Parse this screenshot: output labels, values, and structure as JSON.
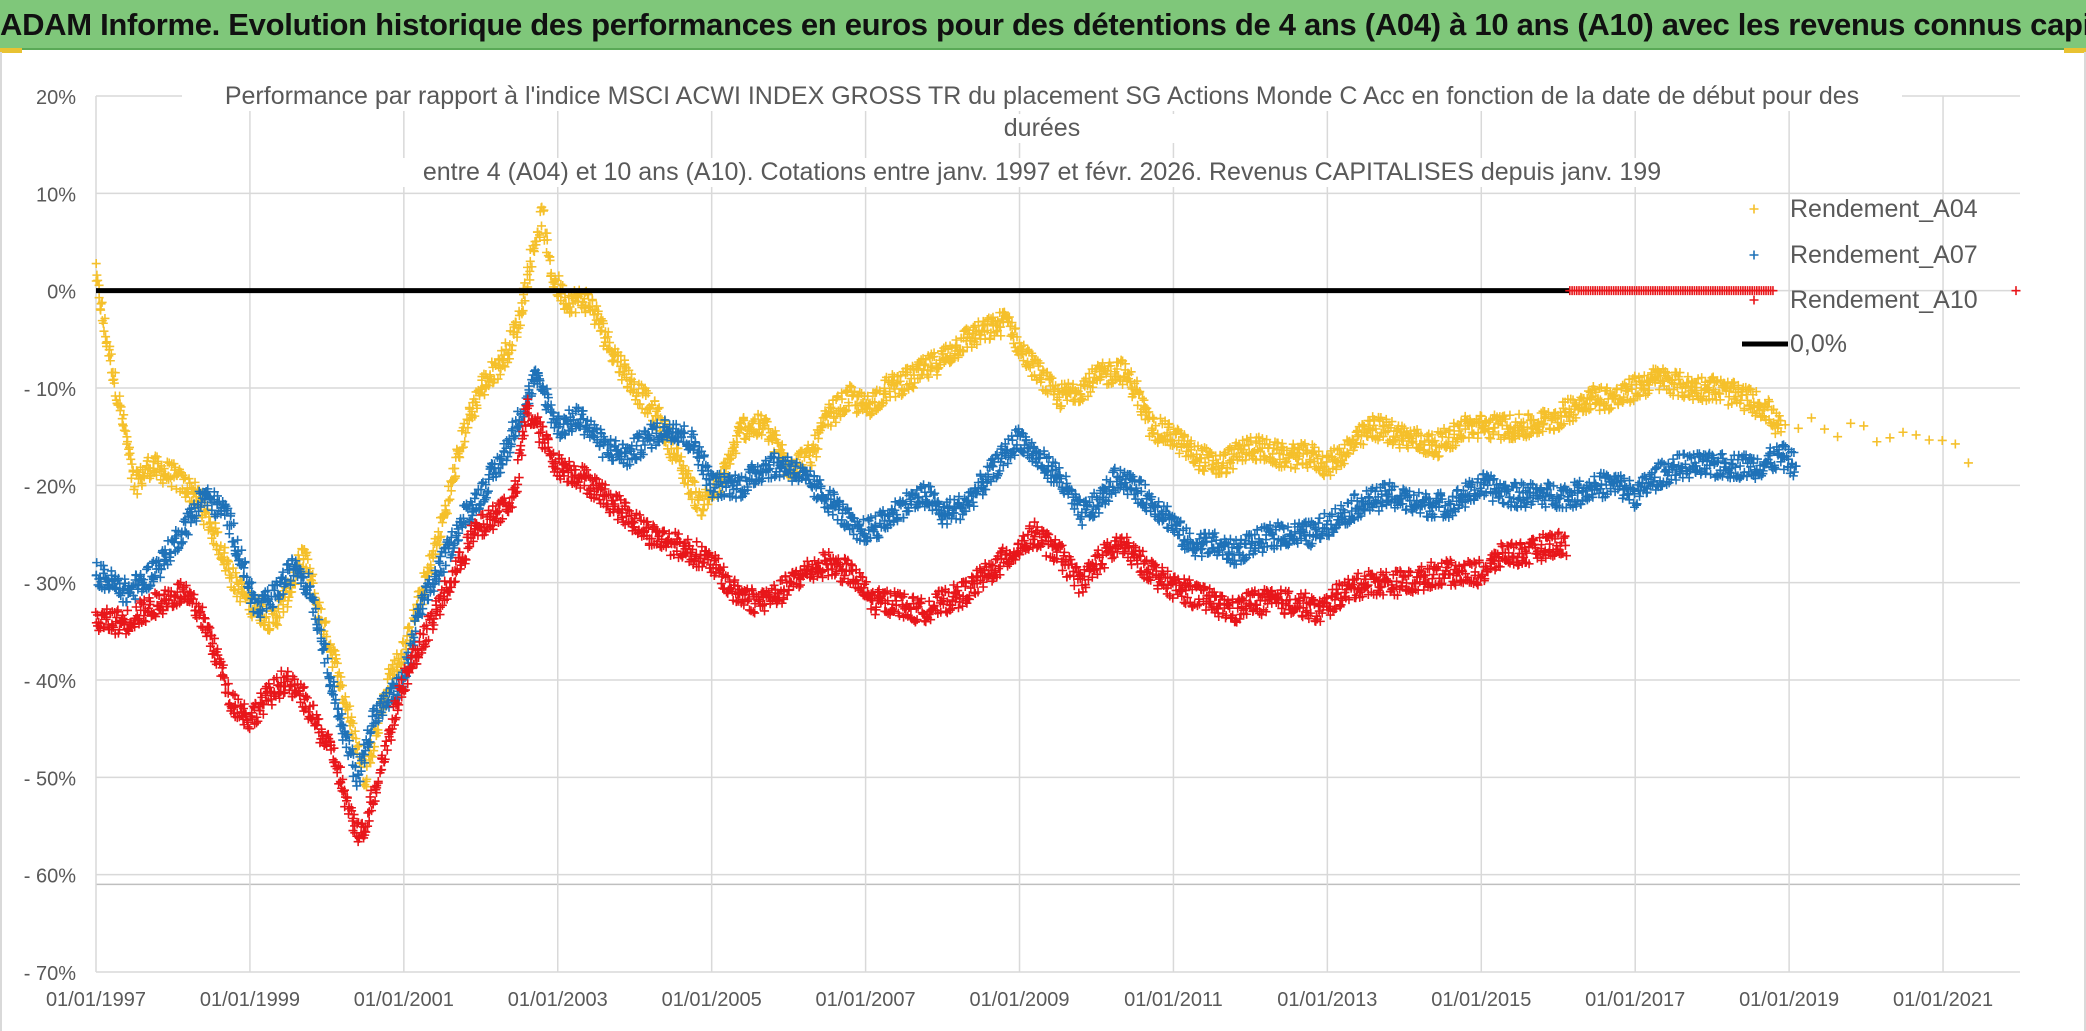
{
  "banner": {
    "title": "ADAM Informe. Evolution historique des performances en euros pour des détentions de 4 ans (A04) à 10 ans (A10) avec les revenus connus capitalisés",
    "background": "#7fc77a"
  },
  "chart_data": {
    "type": "scatter",
    "title_lines": [
      "Performance par rapport à l'indice MSCI ACWI INDEX GROSS TR  du placement SG Actions Monde C Acc en fonction de la date de début pour des",
      "durées",
      "entre 4 (A04) et 10 ans (A10). Cotations entre janv. 1997 et févr. 2026. Revenus CAPITALISES depuis janv. 199"
    ],
    "ylim": [
      -70,
      20
    ],
    "y_ticks": [
      20,
      10,
      0,
      -10,
      -20,
      -30,
      -40,
      -50,
      -60,
      -70
    ],
    "y_tick_labels": [
      "20%",
      "10%",
      "0%",
      "- 10%",
      "- 20%",
      "- 30%",
      "- 40%",
      "- 50%",
      "- 60%",
      "- 70%"
    ],
    "xlim": [
      1997.0,
      2022.0
    ],
    "x_ticks": [
      1997,
      1999,
      2001,
      2003,
      2005,
      2007,
      2009,
      2011,
      2013,
      2015,
      2017,
      2019,
      2021
    ],
    "x_tick_labels": [
      "01/01/1997",
      "01/01/1999",
      "01/01/2001",
      "01/01/2003",
      "01/01/2005",
      "01/01/2007",
      "01/01/2009",
      "01/01/2011",
      "01/01/2013",
      "01/01/2015",
      "01/01/2017",
      "01/01/2019",
      "01/01/2021"
    ],
    "grid": true,
    "legend_position": "right",
    "reference_line": {
      "name": "0,0%",
      "value": 0,
      "x_range": [
        1997.0,
        2016.15
      ],
      "color": "#000000"
    },
    "series": [
      {
        "name": "Rendement_A04",
        "color": "#f5c02b",
        "x": [
          1997.0,
          1997.1,
          1997.2,
          1997.35,
          1997.5,
          1997.7,
          1998.0,
          1998.3,
          1998.6,
          1998.8,
          1999.0,
          1999.3,
          1999.5,
          1999.7,
          1999.9,
          2000.1,
          2000.3,
          2000.5,
          2000.8,
          2001.0,
          2001.2,
          2001.5,
          2001.8,
          2002.0,
          2002.3,
          2002.5,
          2002.65,
          2002.8,
          2002.9,
          2003.1,
          2003.4,
          2003.7,
          2004.0,
          2004.3,
          2004.6,
          2004.85,
          2005.1,
          2005.4,
          2005.7,
          2006.0,
          2006.3,
          2006.5,
          2006.8,
          2007.0,
          2007.3,
          2007.6,
          2008.0,
          2008.3,
          2008.6,
          2008.85,
          2009.0,
          2009.2,
          2009.5,
          2009.8,
          2010.0,
          2010.3,
          2010.5,
          2010.7,
          2011.0,
          2011.3,
          2011.6,
          2012.0,
          2012.4,
          2012.8,
          2013.0,
          2013.3,
          2013.6,
          2014.0,
          2014.4,
          2014.8,
          2015.2,
          2015.6,
          2016.0,
          2016.4,
          2016.8,
          2017.0,
          2017.3,
          2017.7,
          2018.0,
          2018.4,
          2018.7,
          2018.85,
          2019.5,
          2020.2,
          2020.9,
          2021.5
        ],
        "y": [
          1.5,
          -3.5,
          -7.5,
          -13.5,
          -20,
          -18,
          -19,
          -21,
          -26,
          -30,
          -32,
          -34,
          -31,
          -27,
          -33,
          -38,
          -44,
          -50,
          -40,
          -37,
          -32,
          -24,
          -14,
          -10,
          -7,
          -3,
          3,
          8,
          2,
          -1,
          -1,
          -6,
          -10,
          -13,
          -18,
          -22,
          -20,
          -14,
          -14,
          -18,
          -17,
          -13,
          -11,
          -12,
          -10,
          -9,
          -7,
          -5,
          -4,
          -3,
          -6,
          -8,
          -11,
          -10,
          -9,
          -8,
          -10,
          -14,
          -15,
          -17,
          -18,
          -16,
          -17,
          -17,
          -18,
          -16,
          -14,
          -15,
          -16,
          -14,
          -14,
          -14,
          -13,
          -11,
          -11,
          -10,
          -9,
          -10,
          -10,
          -11,
          -12,
          -14,
          -14,
          -15,
          -16,
          -17
        ]
      },
      {
        "name": "Rendement_A07",
        "color": "#1f72b8",
        "x": [
          1997.0,
          1997.2,
          1997.4,
          1997.6,
          1997.85,
          1998.1,
          1998.4,
          1998.7,
          1998.9,
          1999.1,
          1999.35,
          1999.6,
          1999.8,
          2000.0,
          2000.2,
          2000.4,
          2000.6,
          2000.8,
          2001.0,
          2001.2,
          2001.5,
          2001.8,
          2002.0,
          2002.3,
          2002.55,
          2002.7,
          2002.85,
          2003.0,
          2003.3,
          2003.6,
          2003.9,
          2004.2,
          2004.5,
          2004.8,
          2005.0,
          2005.4,
          2005.7,
          2006.0,
          2006.3,
          2006.6,
          2006.9,
          2007.2,
          2007.5,
          2007.8,
          2008.0,
          2008.3,
          2008.6,
          2008.8,
          2009.0,
          2009.2,
          2009.5,
          2009.8,
          2010.0,
          2010.3,
          2010.6,
          2010.9,
          2011.2,
          2011.5,
          2011.8,
          2012.0,
          2012.4,
          2012.8,
          2013.0,
          2013.4,
          2013.8,
          2014.2,
          2014.6,
          2015.0,
          2015.4,
          2015.8,
          2016.2,
          2016.5,
          2016.8,
          2017.0,
          2017.3,
          2017.6,
          2018.0,
          2018.3,
          2018.6,
          2018.9,
          2019.1
        ],
        "y": [
          -29,
          -30,
          -31,
          -30,
          -28,
          -25,
          -21,
          -23,
          -28,
          -33,
          -31,
          -28,
          -31,
          -38,
          -45,
          -50,
          -44,
          -42,
          -40,
          -33,
          -28,
          -23,
          -21,
          -17,
          -12,
          -9,
          -11,
          -14,
          -13,
          -16,
          -17,
          -15,
          -14,
          -16,
          -20,
          -20,
          -18,
          -18,
          -20,
          -22,
          -25,
          -24,
          -22,
          -21,
          -23,
          -22,
          -19,
          -17,
          -15,
          -17,
          -19,
          -23,
          -22,
          -19,
          -21,
          -23,
          -26,
          -26,
          -27,
          -26,
          -25,
          -25,
          -24,
          -22,
          -21,
          -22,
          -22,
          -20,
          -21,
          -21,
          -21,
          -20,
          -20,
          -21,
          -19,
          -18,
          -18,
          -18,
          -18,
          -17,
          -18
        ]
      },
      {
        "name": "Rendement_A10",
        "color": "#e8161a",
        "x": [
          1997.0,
          1997.2,
          1997.4,
          1997.6,
          1997.85,
          1998.1,
          1998.35,
          1998.55,
          1998.75,
          1999.0,
          1999.2,
          1999.45,
          1999.7,
          1999.9,
          2000.1,
          2000.3,
          2000.45,
          2000.6,
          2000.8,
          2001.0,
          2001.3,
          2001.6,
          2001.9,
          2002.2,
          2002.45,
          2002.6,
          2002.8,
          2003.0,
          2003.3,
          2003.6,
          2003.9,
          2004.2,
          2004.5,
          2004.8,
          2005.0,
          2005.3,
          2005.6,
          2005.9,
          2006.2,
          2006.5,
          2006.8,
          2007.1,
          2007.4,
          2007.7,
          2008.0,
          2008.3,
          2008.6,
          2008.9,
          2009.2,
          2009.5,
          2009.8,
          2010.0,
          2010.3,
          2010.6,
          2010.9,
          2011.2,
          2011.5,
          2011.8,
          2012.0,
          2012.3,
          2012.6,
          2012.9,
          2013.2,
          2013.5,
          2013.8,
          2014.1,
          2014.4,
          2014.7,
          2015.0,
          2015.3,
          2015.6,
          2015.9,
          2016.1
        ],
        "y": [
          -34,
          -34,
          -34,
          -33,
          -32,
          -31,
          -33,
          -37,
          -42,
          -44,
          -42,
          -40,
          -42,
          -45,
          -48,
          -54,
          -56,
          -52,
          -46,
          -40,
          -35,
          -30,
          -25,
          -23,
          -21,
          -12,
          -15,
          -18,
          -19,
          -21,
          -23,
          -25,
          -26,
          -27,
          -28,
          -31,
          -32,
          -31,
          -29,
          -28,
          -29,
          -32,
          -32,
          -33,
          -32,
          -31,
          -29,
          -27,
          -25,
          -27,
          -30,
          -28,
          -26,
          -28,
          -30,
          -31,
          -32,
          -33,
          -32,
          -32,
          -32,
          -33,
          -31,
          -30,
          -30,
          -30,
          -29,
          -29,
          -29,
          -27,
          -27,
          -26,
          -26
        ]
      }
    ]
  },
  "legend": [
    "Rendement_A04",
    "Rendement_A07",
    "Rendement_A10",
    "0,0%"
  ]
}
